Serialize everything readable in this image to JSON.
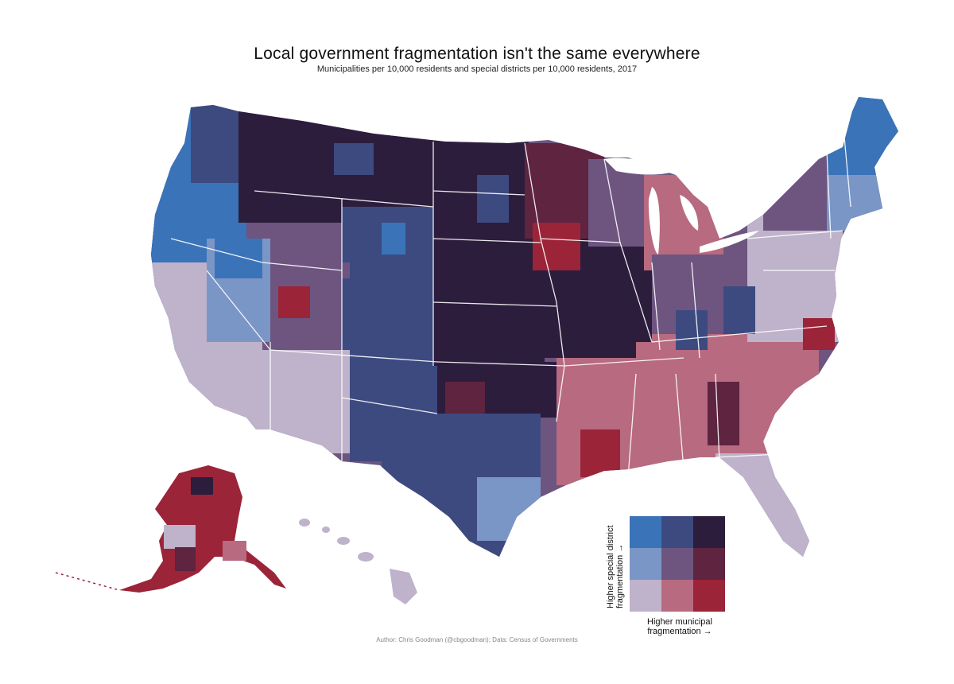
{
  "title": "Local government fragmentation isn't the same everywhere",
  "subtitle": "Municipalities per 10,000 residents and special districts per 10,000 residents, 2017",
  "credit": "Author: Chris Goodman (@cbgoodman); Data: Census of Governments",
  "legend": {
    "y_label_line1": "Higher special district",
    "y_label_line2": "fragmentation →",
    "x_label_line1": "Higher municipal",
    "x_label_line2": "fragmentation →",
    "colors": [
      [
        "#3a73b8",
        "#3d4a80",
        "#2c1d3d"
      ],
      [
        "#7a96c6",
        "#6d5580",
        "#5e2440"
      ],
      [
        "#bfb2cb",
        "#b76a80",
        "#9b2439"
      ]
    ]
  },
  "colors": {
    "boundary": "#ffffff",
    "background": "#ffffff"
  }
}
